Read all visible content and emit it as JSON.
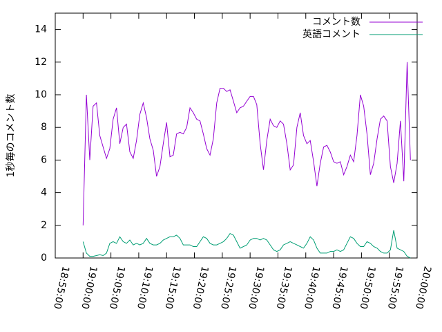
{
  "chart_data": {
    "type": "line",
    "y_label": "1秒毎のコメント数",
    "legend": "top right",
    "grid": false,
    "xlim": [
      "18:55:00",
      "20:00:00"
    ],
    "xticks": [
      "18:55:00",
      "19:00:00",
      "19:05:00",
      "19:10:00",
      "19:15:00",
      "19:20:00",
      "19:25:00",
      "19:30:00",
      "19:35:00",
      "19:40:00",
      "19:45:00",
      "19:50:00",
      "19:55:00",
      "20:00:00"
    ],
    "ylim": [
      0,
      15
    ],
    "yticks": [
      0,
      2,
      4,
      6,
      8,
      10,
      12,
      14
    ],
    "x": [
      "19:00:00",
      "19:00:36",
      "19:01:12",
      "19:01:48",
      "19:02:24",
      "19:03:00",
      "19:03:36",
      "19:04:12",
      "19:04:48",
      "19:05:24",
      "19:06:00",
      "19:06:36",
      "19:07:12",
      "19:07:48",
      "19:08:24",
      "19:09:00",
      "19:09:36",
      "19:10:12",
      "19:10:48",
      "19:11:24",
      "19:12:00",
      "19:12:36",
      "19:13:12",
      "19:13:48",
      "19:14:24",
      "19:15:00",
      "19:15:36",
      "19:16:12",
      "19:16:48",
      "19:17:24",
      "19:18:00",
      "19:18:36",
      "19:19:12",
      "19:19:48",
      "19:20:24",
      "19:21:00",
      "19:21:36",
      "19:22:12",
      "19:22:48",
      "19:23:24",
      "19:24:00",
      "19:24:36",
      "19:25:12",
      "19:25:48",
      "19:26:24",
      "19:27:00",
      "19:27:36",
      "19:28:12",
      "19:28:48",
      "19:29:24",
      "19:30:00",
      "19:30:36",
      "19:31:12",
      "19:31:48",
      "19:32:24",
      "19:33:00",
      "19:33:36",
      "19:34:12",
      "19:34:48",
      "19:35:24",
      "19:36:00",
      "19:36:36",
      "19:37:12",
      "19:37:48",
      "19:38:24",
      "19:39:00",
      "19:39:36",
      "19:40:12",
      "19:40:48",
      "19:41:24",
      "19:42:00",
      "19:42:36",
      "19:43:12",
      "19:43:48",
      "19:44:24",
      "19:45:00",
      "19:45:36",
      "19:46:12",
      "19:46:48",
      "19:47:24",
      "19:48:00",
      "19:48:36",
      "19:49:12",
      "19:49:48",
      "19:50:24",
      "19:51:00",
      "19:51:36",
      "19:52:12",
      "19:52:48",
      "19:53:24",
      "19:54:00",
      "19:54:36",
      "19:55:12",
      "19:55:48",
      "19:56:24",
      "19:57:00",
      "19:57:36",
      "19:58:12",
      "19:58:48"
    ],
    "series": [
      {
        "name": "コメント数",
        "color": "#9400d3",
        "values": [
          2.0,
          10.0,
          6.0,
          9.3,
          9.5,
          7.5,
          6.8,
          6.1,
          6.7,
          8.5,
          9.2,
          7.0,
          8.0,
          8.2,
          6.5,
          6.1,
          7.2,
          8.8,
          9.5,
          8.6,
          7.3,
          6.6,
          5.0,
          5.6,
          7.0,
          8.3,
          6.2,
          6.3,
          7.6,
          7.7,
          7.6,
          8.0,
          9.2,
          8.9,
          8.5,
          8.4,
          7.6,
          6.7,
          6.3,
          7.3,
          9.5,
          10.4,
          10.4,
          10.2,
          10.3,
          9.6,
          8.9,
          9.2,
          9.3,
          9.6,
          9.9,
          9.9,
          9.4,
          7.0,
          5.4,
          7.2,
          8.5,
          8.1,
          8.0,
          8.4,
          8.2,
          7.0,
          5.4,
          5.7,
          8.0,
          8.9,
          7.5,
          7.0,
          7.2,
          5.9,
          4.4,
          5.8,
          6.8,
          6.9,
          6.5,
          5.9,
          5.8,
          5.9,
          5.1,
          5.6,
          6.3,
          5.9,
          7.5,
          10.0,
          9.3,
          7.6,
          5.1,
          5.8,
          7.3,
          8.5,
          8.7,
          8.4,
          5.6,
          4.6,
          5.8,
          8.4,
          4.7,
          12.0,
          6.0
        ]
      },
      {
        "name": "英語コメント",
        "color": "#009e73",
        "values": [
          1.0,
          0.3,
          0.1,
          0.1,
          0.15,
          0.2,
          0.15,
          0.3,
          0.9,
          1.0,
          0.9,
          1.3,
          1.0,
          0.9,
          1.1,
          0.8,
          0.9,
          0.8,
          0.9,
          1.2,
          0.9,
          0.8,
          0.8,
          0.9,
          1.1,
          1.2,
          1.3,
          1.3,
          1.4,
          1.2,
          0.8,
          0.8,
          0.8,
          0.7,
          0.7,
          1.0,
          1.3,
          1.2,
          0.9,
          0.8,
          0.8,
          0.9,
          1.0,
          1.2,
          1.5,
          1.4,
          1.0,
          0.6,
          0.7,
          0.8,
          1.1,
          1.2,
          1.2,
          1.1,
          1.2,
          1.1,
          0.8,
          0.5,
          0.4,
          0.5,
          0.8,
          0.9,
          1.0,
          0.9,
          0.8,
          0.7,
          0.6,
          0.9,
          1.3,
          1.1,
          0.6,
          0.3,
          0.3,
          0.3,
          0.4,
          0.4,
          0.5,
          0.4,
          0.5,
          0.9,
          1.3,
          1.2,
          0.9,
          0.7,
          0.7,
          1.0,
          0.9,
          0.7,
          0.6,
          0.4,
          0.3,
          0.3,
          0.5,
          1.7,
          0.6,
          0.5,
          0.4,
          0.1,
          0.0
        ]
      }
    ]
  }
}
